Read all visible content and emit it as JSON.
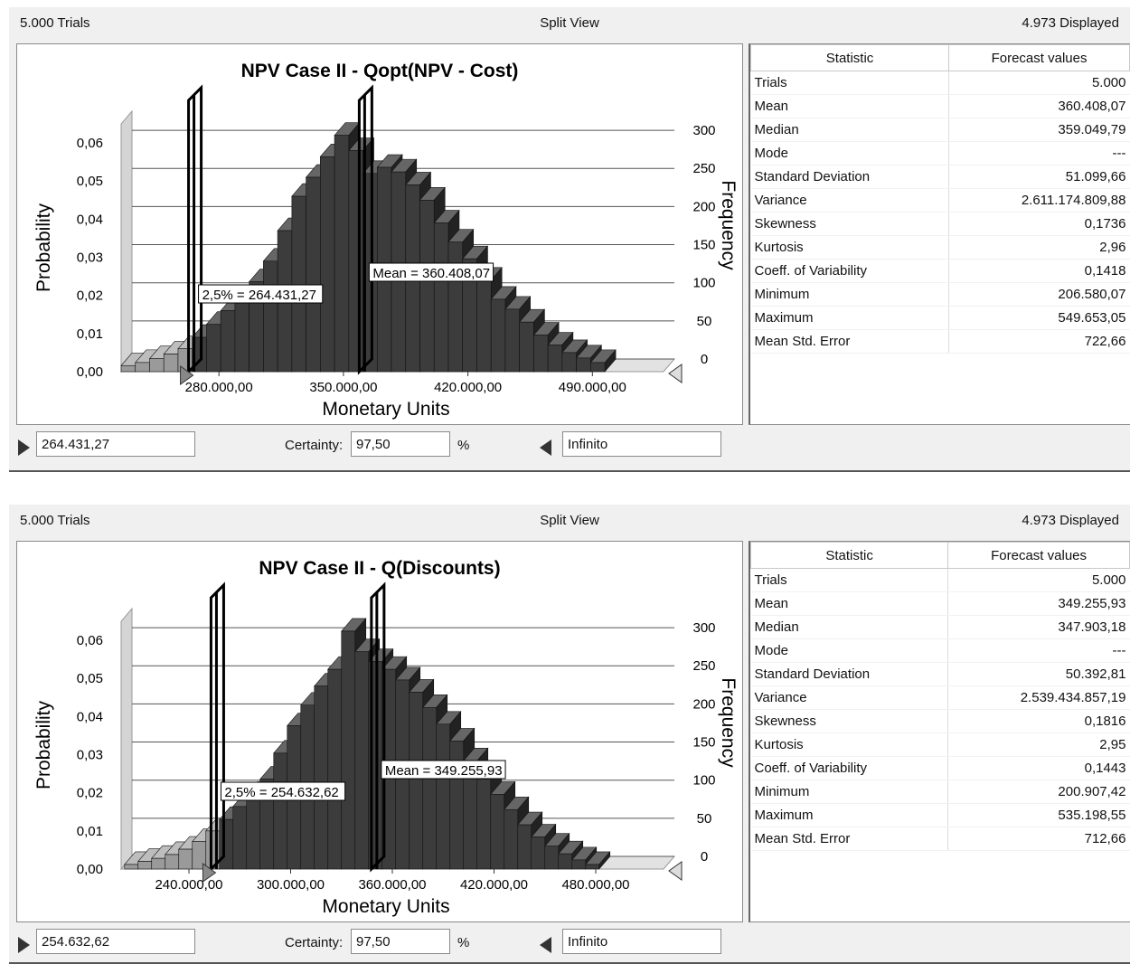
{
  "panels": [
    {
      "trials_label": "5.000 Trials",
      "view_label": "Split View",
      "displayed_label": "4.973 Displayed",
      "chart_title": "NPV Case II - Qopt(NPV - Cost)",
      "left_marker_label": "2,5% = 264.431,27",
      "mean_marker_label": "Mean = 360.408,07",
      "left_value": "264.431,27",
      "certainty_label": "Certainty:",
      "certainty_value": "97,50",
      "percent_sign": "%",
      "right_value": "Infinito",
      "stats_header": {
        "statistic": "Statistic",
        "values": "Forecast values"
      },
      "stats": [
        {
          "name": "Trials",
          "value": "5.000"
        },
        {
          "name": "Mean",
          "value": "360.408,07"
        },
        {
          "name": "Median",
          "value": "359.049,79"
        },
        {
          "name": "Mode",
          "value": "---"
        },
        {
          "name": "Standard Deviation",
          "value": "51.099,66"
        },
        {
          "name": "Variance",
          "value": "2.611.174.809,88"
        },
        {
          "name": "Skewness",
          "value": "0,1736"
        },
        {
          "name": "Kurtosis",
          "value": "2,96"
        },
        {
          "name": "Coeff. of Variability",
          "value": "0,1418"
        },
        {
          "name": "Minimum",
          "value": "206.580,07"
        },
        {
          "name": "Maximum",
          "value": "549.653,05"
        },
        {
          "name": "Mean Std. Error",
          "value": "722,66"
        }
      ]
    },
    {
      "trials_label": "5.000 Trials",
      "view_label": "Split View",
      "displayed_label": "4.973 Displayed",
      "chart_title": "NPV Case II - Q(Discounts)",
      "left_marker_label": "2,5% = 254.632,62",
      "mean_marker_label": "Mean = 349.255,93",
      "left_value": "254.632,62",
      "certainty_label": "Certainty:",
      "certainty_value": "97,50",
      "percent_sign": "%",
      "right_value": "Infinito",
      "stats_header": {
        "statistic": "Statistic",
        "values": "Forecast values"
      },
      "stats": [
        {
          "name": "Trials",
          "value": "5.000"
        },
        {
          "name": "Mean",
          "value": "349.255,93"
        },
        {
          "name": "Median",
          "value": "347.903,18"
        },
        {
          "name": "Mode",
          "value": "---"
        },
        {
          "name": "Standard Deviation",
          "value": "50.392,81"
        },
        {
          "name": "Variance",
          "value": "2.539.434.857,19"
        },
        {
          "name": "Skewness",
          "value": "0,1816"
        },
        {
          "name": "Kurtosis",
          "value": "2,95"
        },
        {
          "name": "Coeff. of Variability",
          "value": "0,1443"
        },
        {
          "name": "Minimum",
          "value": "200.907,42"
        },
        {
          "name": "Maximum",
          "value": "535.198,55"
        },
        {
          "name": "Mean Std. Error",
          "value": "712,66"
        }
      ]
    }
  ],
  "chart_data": [
    {
      "type": "bar",
      "title": "NPV Case II - Qopt(NPV - Cost)",
      "xlabel": "Monetary Units",
      "ylabel": "Probability",
      "y2label": "Frequency",
      "x_ticks": [
        "280.000,00",
        "350.000,00",
        "420.000,00",
        "490.000,00"
      ],
      "x_tick_values": [
        280000,
        350000,
        420000,
        490000
      ],
      "xlim": [
        225000,
        530000
      ],
      "y_ticks": [
        "0,00",
        "0,01",
        "0,02",
        "0,03",
        "0,04",
        "0,05",
        "0,06"
      ],
      "y2_ticks": [
        "0",
        "50",
        "100",
        "150",
        "200",
        "250",
        "300"
      ],
      "ylim": [
        0,
        0.065
      ],
      "grid": true,
      "bin_width": 8000,
      "bin_start": 225000,
      "frequencies": [
        8,
        12,
        17,
        23,
        30,
        45,
        62,
        80,
        97,
        118,
        145,
        185,
        230,
        255,
        282,
        310,
        290,
        260,
        268,
        262,
        245,
        225,
        195,
        170,
        148,
        120,
        95,
        82,
        65,
        48,
        35,
        25,
        18,
        12
      ],
      "lower_cutoff": 264431.27,
      "mean": 360408.07,
      "mean_label": "Mean = 360.408,07",
      "cutoff_label": "2,5% = 264.431,27"
    },
    {
      "type": "bar",
      "title": "NPV Case II - Q(Discounts)",
      "xlabel": "Monetary Units",
      "ylabel": "Probability",
      "y2label": "Frequency",
      "x_ticks": [
        "240.000,00",
        "300.000,00",
        "360.000,00",
        "420.000,00",
        "480.000,00"
      ],
      "x_tick_values": [
        240000,
        300000,
        360000,
        420000,
        480000
      ],
      "xlim": [
        200000,
        520000
      ],
      "y_ticks": [
        "0,00",
        "0,01",
        "0,02",
        "0,03",
        "0,04",
        "0,05",
        "0,06"
      ],
      "y2_ticks": [
        "0",
        "50",
        "100",
        "150",
        "200",
        "250",
        "300"
      ],
      "ylim": [
        0,
        0.065
      ],
      "grid": true,
      "bin_width": 8000,
      "bin_start": 202000,
      "frequencies": [
        6,
        10,
        14,
        19,
        26,
        36,
        50,
        65,
        82,
        98,
        118,
        152,
        188,
        215,
        240,
        262,
        312,
        285,
        272,
        262,
        248,
        232,
        212,
        190,
        168,
        142,
        118,
        98,
        78,
        58,
        42,
        30,
        20,
        12,
        6
      ],
      "lower_cutoff": 254632.62,
      "mean": 349255.93,
      "mean_label": "Mean = 349.255,93",
      "cutoff_label": "2,5% = 254.632,62"
    }
  ]
}
